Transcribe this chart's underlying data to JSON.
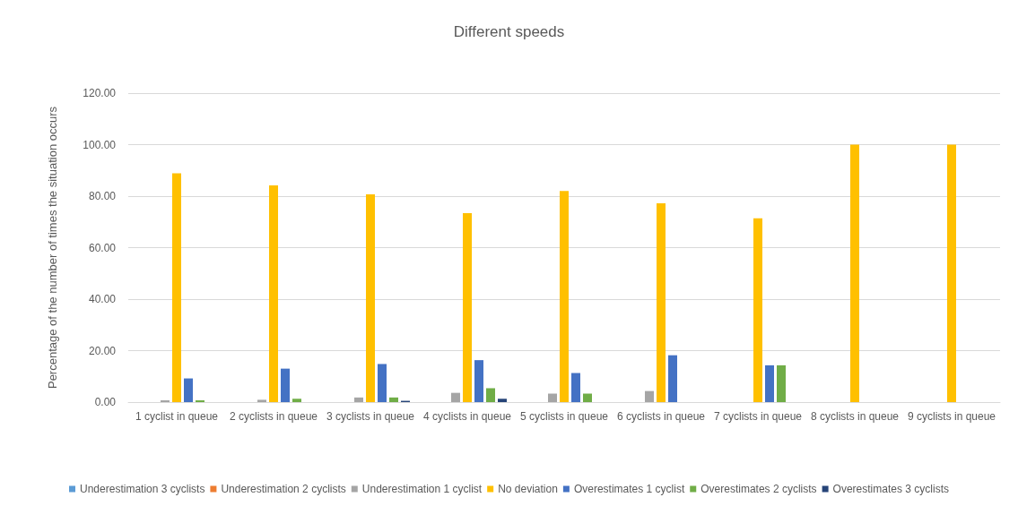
{
  "chart_data": {
    "type": "bar",
    "title": "Different speeds",
    "ylabel": "Percentage of the number of times the situation occurs",
    "categories": [
      "1 cyclist in queue",
      "2 cyclists in queue",
      "3 cyclists in queue",
      "4 cyclists in queue",
      "5 cyclists in queue",
      "6 cyclists in queue",
      "7 cyclists in queue",
      "8 cyclists in queue",
      "9 cyclists in queue"
    ],
    "series": [
      {
        "name": "Underestimation 3 cyclists",
        "color": "#5b9bd5",
        "values": [
          null,
          null,
          null,
          null,
          null,
          null,
          null,
          null,
          null
        ]
      },
      {
        "name": "Underestimation 2 cyclists",
        "color": "#ed7d31",
        "values": [
          null,
          null,
          null,
          null,
          null,
          null,
          null,
          null,
          null
        ]
      },
      {
        "name": "Underestimation 1 cyclist",
        "color": "#a5a5a5",
        "values": [
          0.7,
          0.9,
          1.8,
          3.6,
          3.3,
          4.3,
          null,
          null,
          null
        ]
      },
      {
        "name": "No deviation",
        "color": "#ffc000",
        "values": [
          88.9,
          84.2,
          80.7,
          73.4,
          82.0,
          77.2,
          71.4,
          100,
          100
        ]
      },
      {
        "name": "Overestimates 1 cyclist",
        "color": "#4472c4",
        "values": [
          9.2,
          13.0,
          14.8,
          16.3,
          11.3,
          18.2,
          14.3,
          null,
          null
        ]
      },
      {
        "name": "Overestimates 2 cyclists",
        "color": "#70ad47",
        "values": [
          0.7,
          1.3,
          1.8,
          5.4,
          3.3,
          null,
          14.3,
          null,
          null
        ]
      },
      {
        "name": "Overestimates 3 cyclists",
        "color": "#264478",
        "values": [
          null,
          null,
          0.5,
          1.3,
          null,
          null,
          null,
          null,
          null
        ]
      }
    ],
    "ylim": [
      0,
      120
    ],
    "yticks": [
      {
        "value": 0,
        "label": "0.00"
      },
      {
        "value": 20,
        "label": "20.00"
      },
      {
        "value": 40,
        "label": "40.00"
      },
      {
        "value": 60,
        "label": "60.00"
      },
      {
        "value": 80,
        "label": "80.00"
      },
      {
        "value": 100,
        "label": "100.00"
      },
      {
        "value": 120,
        "label": "120.00"
      }
    ],
    "grid": "y",
    "legend": "bottom"
  }
}
